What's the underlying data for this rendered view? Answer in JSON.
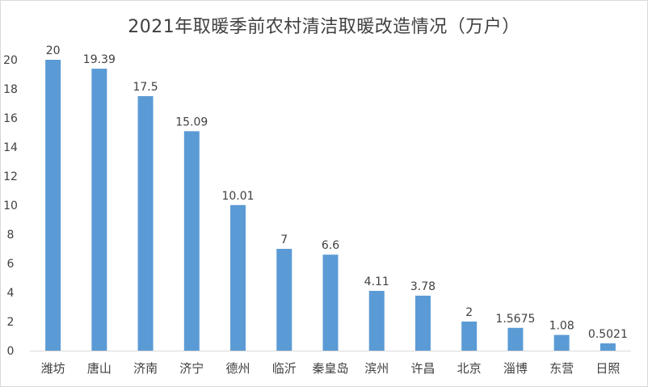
{
  "chart_data": {
    "type": "bar",
    "title": "2021年取暖季前农村清洁取暖改造情况（万户）",
    "xlabel": "",
    "ylabel": "",
    "categories": [
      "潍坊",
      "唐山",
      "济南",
      "济宁",
      "德州",
      "临沂",
      "秦皇岛",
      "滨州",
      "许昌",
      "北京",
      "淄博",
      "东营",
      "日照"
    ],
    "values": [
      20,
      19.39,
      17.5,
      15.09,
      10.01,
      7,
      6.6,
      4.11,
      3.78,
      2,
      1.5675,
      1.08,
      0.5021
    ],
    "data_labels": [
      "20",
      "19.39",
      "17.5",
      "15.09",
      "10.01",
      "7",
      "6.6",
      "4.11",
      "3.78",
      "2",
      "1.5675",
      "1.08",
      "0.5021"
    ],
    "y_ticks": [
      "0",
      "2",
      "4",
      "6",
      "8",
      "10",
      "12",
      "14",
      "16",
      "18",
      "20"
    ],
    "ylim": [
      0,
      20
    ],
    "grid": false,
    "legend": "none",
    "bar_color": "#5b9bd5",
    "axis_color": "#d9d9d9",
    "text_color": "#404040"
  }
}
